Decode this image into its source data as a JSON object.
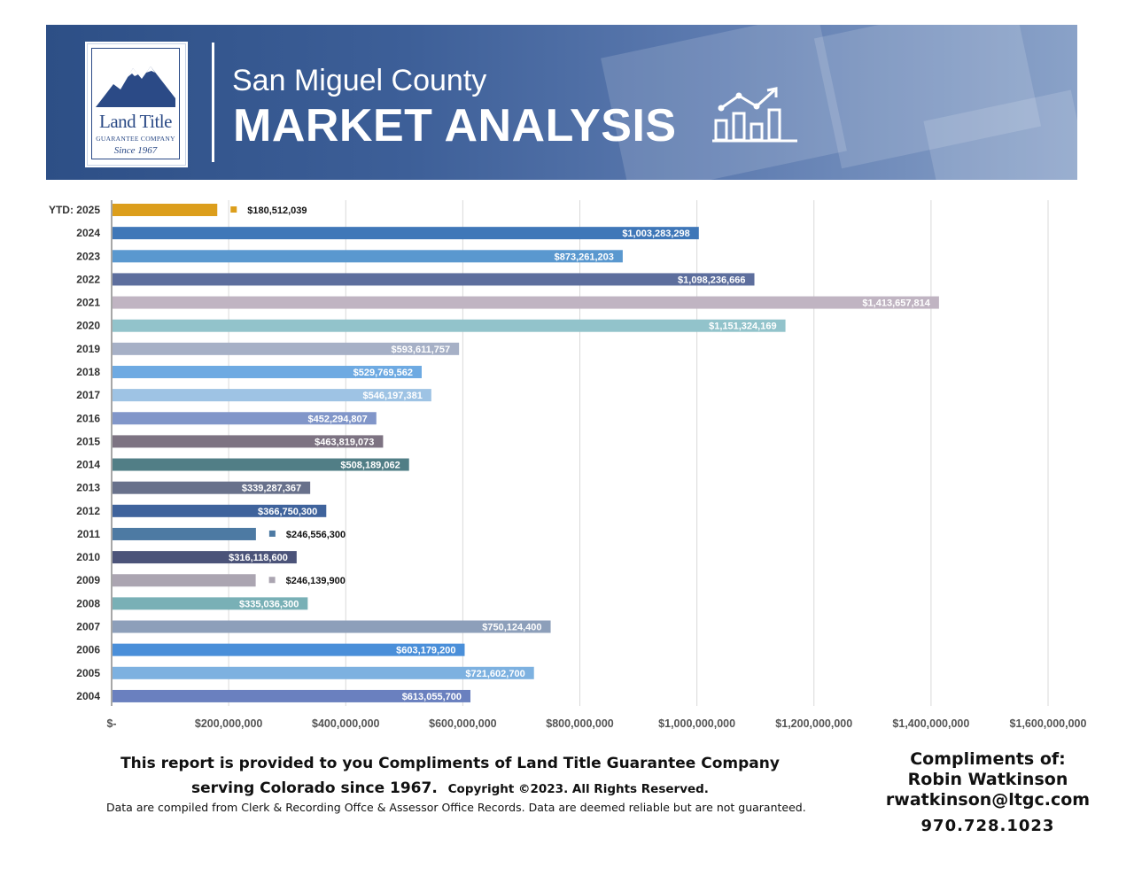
{
  "header": {
    "logo_brand": "Land Title",
    "logo_sub": "GUARANTEE COMPANY",
    "logo_since": "Since 1967",
    "subtitle": "San Miguel County",
    "title": "MARKET ANALYSIS"
  },
  "chart_data": {
    "type": "bar",
    "orientation": "horizontal",
    "categories": [
      "YTD: 2025",
      "2024",
      "2023",
      "2022",
      "2021",
      "2020",
      "2019",
      "2018",
      "2017",
      "2016",
      "2015",
      "2014",
      "2013",
      "2012",
      "2011",
      "2010",
      "2009",
      "2008",
      "2007",
      "2006",
      "2005",
      "2004"
    ],
    "values": [
      180512039,
      1003283298,
      873261203,
      1098236666,
      1413657814,
      1151324169,
      593611757,
      529769562,
      546197381,
      452294807,
      463819073,
      508189062,
      339287367,
      366750300,
      246556300,
      316118600,
      246139900,
      335036300,
      750124400,
      603179200,
      721602700,
      613055700
    ],
    "value_labels": [
      "$180,512,039",
      "$1,003,283,298",
      "$873,261,203",
      "$1,098,236,666",
      "$1,413,657,814",
      "$1,151,324,169",
      "$593,611,757",
      "$529,769,562",
      "$546,197,381",
      "$452,294,807",
      "$463,819,073",
      "$508,189,062",
      "$339,287,367",
      "$366,750,300",
      "$246,556,300",
      "$316,118,600",
      "$246,139,900",
      "$335,036,300",
      "$750,124,400",
      "$603,179,200",
      "$721,602,700",
      "$613,055,700"
    ],
    "colors": [
      "#dc9e1c",
      "#3f77b8",
      "#5a98cf",
      "#5d6e9d",
      "#c0b4c2",
      "#92c3cb",
      "#a6b0c6",
      "#6eaae2",
      "#9ec3e4",
      "#8196c9",
      "#7d7382",
      "#517e86",
      "#68718b",
      "#3f639c",
      "#4d7aa3",
      "#4b5379",
      "#aba5b1",
      "#79b0b6",
      "#8d9fba",
      "#4a8fd9",
      "#7db1e0",
      "#6a80bf"
    ],
    "xlim": [
      0,
      1600000000
    ],
    "ticks": [
      0,
      200000000,
      400000000,
      600000000,
      800000000,
      1000000000,
      1200000000,
      1400000000,
      1600000000
    ],
    "tick_labels": [
      "$-",
      "$200,000,000",
      "$400,000,000",
      "$600,000,000",
      "$800,000,000",
      "$1,000,000,000",
      "$1,200,000,000",
      "$1,400,000,000",
      "$1,600,000,000"
    ],
    "grid": true,
    "legend": "none",
    "title": "",
    "xlabel": "",
    "ylabel": ""
  },
  "footer": {
    "line1": "This report is provided to you Compliments of Land Title Guarantee Company",
    "line2": "serving Colorado since 1967.",
    "copyright": "Copyright ©2023.  All Rights Reserved.",
    "disclaimer": "Data are compiled from Clerk & Recording Offce & Assessor Office Records.  Data are deemed reliable but are not guaranteed."
  },
  "contact": {
    "heading": "Compliments of:",
    "name": "Robin Watkinson",
    "email": "rwatkinson@ltgc.com",
    "phone": "970.728.1023"
  }
}
